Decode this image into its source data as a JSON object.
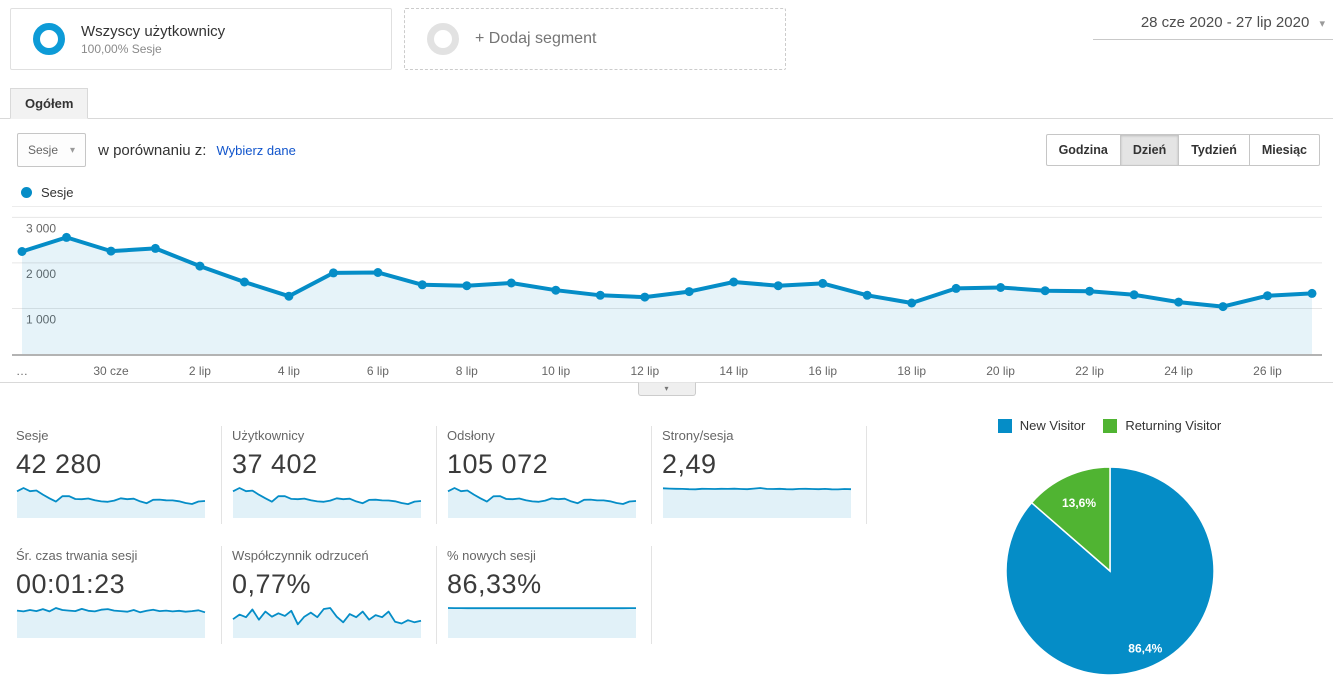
{
  "icons": {
    "caret_down": "▾",
    "plus": "+"
  },
  "header": {
    "segment_all_users": {
      "title": "Wszyscy użytkownicy",
      "subtitle": "100,00% Sesje"
    },
    "add_segment_label": "+ Dodaj segment",
    "date_range": "28 cze 2020 - 27 lip 2020"
  },
  "tabs": {
    "overview": "Ogółem"
  },
  "toolbar": {
    "metric_select": "Sesje",
    "compare_label": "w porównaniu z:",
    "compare_link": "Wybierz dane",
    "granularity": [
      "Godzina",
      "Dzień",
      "Tydzień",
      "Miesiąc"
    ],
    "granularity_selected": "Dzień"
  },
  "chart_legend": {
    "label": "Sesje"
  },
  "chart_data": [
    {
      "type": "line",
      "title": "Sesje dziennie",
      "x": [
        "28 cze",
        "29 cze",
        "30 cze",
        "1 lip",
        "2 lip",
        "3 lip",
        "4 lip",
        "5 lip",
        "6 lip",
        "7 lip",
        "8 lip",
        "9 lip",
        "10 lip",
        "11 lip",
        "12 lip",
        "13 lip",
        "14 lip",
        "15 lip",
        "16 lip",
        "17 lip",
        "18 lip",
        "19 lip",
        "20 lip",
        "21 lip",
        "22 lip",
        "23 lip",
        "24 lip",
        "25 lip",
        "26 lip",
        "27 lip"
      ],
      "series": [
        {
          "name": "Sesje",
          "color": "#058dc7",
          "values": [
            2250,
            2560,
            2260,
            2320,
            1930,
            1580,
            1270,
            1780,
            1790,
            1520,
            1500,
            1560,
            1400,
            1290,
            1250,
            1370,
            1580,
            1500,
            1550,
            1290,
            1120,
            1440,
            1460,
            1390,
            1380,
            1300,
            1140,
            1040,
            1280,
            1330
          ]
        }
      ],
      "xticks": [
        {
          "index": 0,
          "label": "…"
        },
        {
          "index": 2,
          "label": "30 cze"
        },
        {
          "index": 4,
          "label": "2 lip"
        },
        {
          "index": 6,
          "label": "4 lip"
        },
        {
          "index": 8,
          "label": "6 lip"
        },
        {
          "index": 10,
          "label": "8 lip"
        },
        {
          "index": 12,
          "label": "10 lip"
        },
        {
          "index": 14,
          "label": "12 lip"
        },
        {
          "index": 16,
          "label": "14 lip"
        },
        {
          "index": 18,
          "label": "16 lip"
        },
        {
          "index": 20,
          "label": "18 lip"
        },
        {
          "index": 22,
          "label": "20 lip"
        },
        {
          "index": 24,
          "label": "22 lip"
        },
        {
          "index": 26,
          "label": "24 lip"
        },
        {
          "index": 28,
          "label": "26 lip"
        }
      ],
      "yticks": [
        {
          "value": 1000,
          "label": "1 000"
        },
        {
          "value": 2000,
          "label": "2 000"
        },
        {
          "value": 3000,
          "label": "3 000"
        }
      ],
      "ylim": [
        0,
        3250
      ],
      "grid": true,
      "legend_position": "top-left"
    },
    {
      "type": "pie",
      "legend": [
        {
          "label": "New Visitor",
          "color": "#058dc7"
        },
        {
          "label": "Returning Visitor",
          "color": "#50b432"
        }
      ],
      "slices": [
        {
          "label": "New Visitor",
          "value": 86.4,
          "display": "86,4%",
          "color": "#058dc7"
        },
        {
          "label": "Returning Visitor",
          "value": 13.6,
          "display": "13,6%",
          "color": "#50b432"
        }
      ]
    }
  ],
  "metrics": {
    "cards": [
      {
        "label": "Sesje",
        "value": "42 280",
        "spark": [
          2250,
          2560,
          2260,
          2320,
          1930,
          1580,
          1270,
          1780,
          1790,
          1520,
          1500,
          1560,
          1400,
          1290,
          1250,
          1370,
          1580,
          1500,
          1550,
          1290,
          1120,
          1440,
          1460,
          1390,
          1380,
          1300,
          1140,
          1040,
          1280,
          1330
        ]
      },
      {
        "label": "Użytkownicy",
        "value": "37 402",
        "spark": [
          1990,
          2270,
          2000,
          2050,
          1710,
          1400,
          1120,
          1580,
          1580,
          1350,
          1330,
          1380,
          1240,
          1140,
          1110,
          1210,
          1400,
          1330,
          1370,
          1140,
          990,
          1270,
          1290,
          1230,
          1220,
          1150,
          1010,
          920,
          1130,
          1180
        ]
      },
      {
        "label": "Odsłony",
        "value": "105 072",
        "spark": [
          5600,
          6380,
          5630,
          5780,
          4810,
          3940,
          3160,
          4430,
          4460,
          3790,
          3740,
          3890,
          3490,
          3210,
          3110,
          3410,
          3930,
          3740,
          3860,
          3210,
          2790,
          3590,
          3640,
          3460,
          3440,
          3240,
          2840,
          2590,
          3190,
          3310
        ]
      },
      {
        "label": "Strony/sesja",
        "value": "2,49",
        "spark": [
          2.55,
          2.52,
          2.5,
          2.49,
          2.47,
          2.46,
          2.5,
          2.49,
          2.48,
          2.5,
          2.49,
          2.51,
          2.48,
          2.47,
          2.52,
          2.58,
          2.49,
          2.48,
          2.5,
          2.47,
          2.46,
          2.49,
          2.5,
          2.48,
          2.47,
          2.49,
          2.46,
          2.45,
          2.48,
          2.47
        ]
      },
      {
        "label": "Śr. czas trwania sesji",
        "value": "00:01:23",
        "spark": [
          86,
          83,
          88,
          84,
          91,
          83,
          95,
          88,
          86,
          84,
          92,
          85,
          83,
          89,
          91,
          86,
          84,
          82,
          88,
          80,
          85,
          89,
          84,
          86,
          83,
          85,
          82,
          84,
          87,
          80
        ]
      },
      {
        "label": "Współczynnik odrzuceń",
        "value": "0,77%",
        "spark": [
          0.62,
          0.8,
          0.7,
          1.0,
          0.6,
          0.92,
          0.72,
          0.85,
          0.75,
          0.95,
          0.42,
          0.72,
          0.88,
          0.7,
          1.02,
          1.06,
          0.72,
          0.5,
          0.82,
          0.7,
          0.92,
          0.6,
          0.78,
          0.7,
          0.92,
          0.52,
          0.45,
          0.58,
          0.5,
          0.56
        ]
      },
      {
        "label": "% nowych sesji",
        "value": "86,33%",
        "spark": [
          86.9,
          86.5,
          86.7,
          86.2,
          86.5,
          86.3,
          86.4,
          86.2,
          86.5,
          86.3,
          86.4,
          86.6,
          86.3,
          86.2,
          86.4,
          86.5,
          86.3,
          86.4,
          86.2,
          86.3,
          86.5,
          86.4,
          86.3,
          86.6,
          86.4,
          86.5,
          86.3,
          86.4,
          86.5,
          86.6
        ]
      }
    ]
  }
}
